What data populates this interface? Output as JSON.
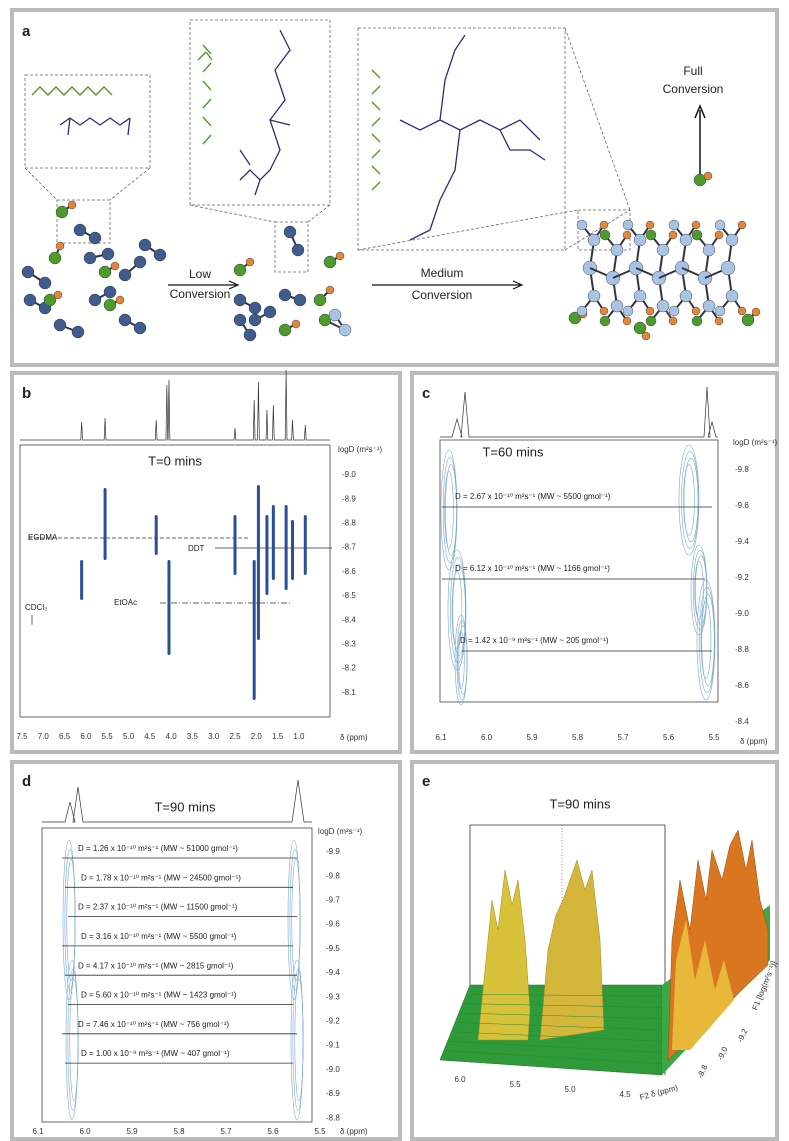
{
  "panels": {
    "a": {
      "label": "a",
      "full_conversion": [
        "Full",
        "Conversion"
      ],
      "low_conversion": [
        "Low",
        "Conversion"
      ],
      "medium_conversion": [
        "Medium",
        "Conversion"
      ]
    },
    "b": {
      "label": "b",
      "title": "T=0 mins",
      "y_axis_label": "logD (m²s⁻¹)",
      "x_axis_label": "δ (ppm)",
      "x_ticks": [
        "7.5",
        "7.0",
        "6.5",
        "6.0",
        "5.5",
        "5.0",
        "4.5",
        "4.0",
        "3.5",
        "3.0",
        "2.5",
        "2.0",
        "1.5",
        "1.0"
      ],
      "y_ticks": [
        "-9.0",
        "-8.9",
        "-8.8",
        "-8.7",
        "-8.6",
        "-8.5",
        "-8.4",
        "-8.3",
        "-8.2",
        "-8.1"
      ],
      "annotations": {
        "egdma": "EGDMA",
        "ddt": "DDT",
        "etoac": "EtOAc",
        "cdcl3": "CDCl₃"
      }
    },
    "c": {
      "label": "c",
      "title": "T=60 mins",
      "y_axis_label": "logD (m²s⁻¹)",
      "x_axis_label": "δ (ppm)",
      "x_ticks": [
        "6.1",
        "6.0",
        "5.9",
        "5.8",
        "5.7",
        "5.6",
        "5.5"
      ],
      "y_ticks": [
        "-9.8",
        "-9.6",
        "-9.4",
        "-9.2",
        "-9.0",
        "-8.8",
        "-8.6",
        "-8.4"
      ],
      "diffusion_lines": [
        "D = 2.67 x 10⁻¹⁰ m²s⁻¹ (MW ~ 5500 gmol⁻¹)",
        "D = 6.12 x 10⁻¹⁰ m²s⁻¹ (MW ~ 1166 gmol⁻¹)",
        "D = 1.42 x 10⁻⁹ m²s⁻¹ (MW ~ 205 gmol⁻¹)"
      ]
    },
    "d": {
      "label": "d",
      "title": "T=90 mins",
      "y_axis_label": "logD (m²s⁻¹)",
      "x_axis_label": "δ (ppm)",
      "x_ticks": [
        "6.1",
        "6.0",
        "5.9",
        "5.8",
        "5.7",
        "5.6",
        "5.5"
      ],
      "y_ticks": [
        "-9.9",
        "-9.8",
        "-9.7",
        "-9.6",
        "-9.5",
        "-9.4",
        "-9.3",
        "-9.2",
        "-9.1",
        "-9.0",
        "-8.9",
        "-8.8"
      ],
      "diffusion_lines": [
        "D = 1.26 x 10⁻¹⁰ m²s⁻¹ (MW ~ 51000 gmol⁻¹)",
        "D = 1.78 x 10⁻¹⁰ m²s⁻¹ (MW ~ 24500 gmol⁻¹)",
        "D = 2.37 x 10⁻¹⁰ m²s⁻¹ (MW ~ 11500 gmol⁻¹)",
        "D = 3.16 x 10⁻¹⁰ m²s⁻¹ (MW ~ 5500 gmol⁻¹)",
        "D = 4.17 x 10⁻¹⁰ m²s⁻¹ (MW ~ 2815 gmol⁻¹)",
        "D = 5.60 x 10⁻¹⁰ m²s⁻¹ (MW ~ 1423 gmol⁻¹)",
        "D = 7.46 x 10⁻¹⁰ m²s⁻¹ (MW ~ 756 gmol⁻¹)",
        "D = 1.00 x 10⁻⁹ m²s⁻¹ (MW ~ 407 gmol⁻¹)"
      ]
    },
    "e": {
      "label": "e",
      "title": "T=90 mins",
      "x_axis_label": "F2 δ (ppm)",
      "y_axis_label": "F1 [log(m²s⁻¹)]",
      "x_ticks": [
        "6.0",
        "5.5",
        "5.0",
        "4.5"
      ],
      "y_ticks": [
        "-8.8",
        "-9.0",
        "-9.2"
      ]
    }
  }
}
